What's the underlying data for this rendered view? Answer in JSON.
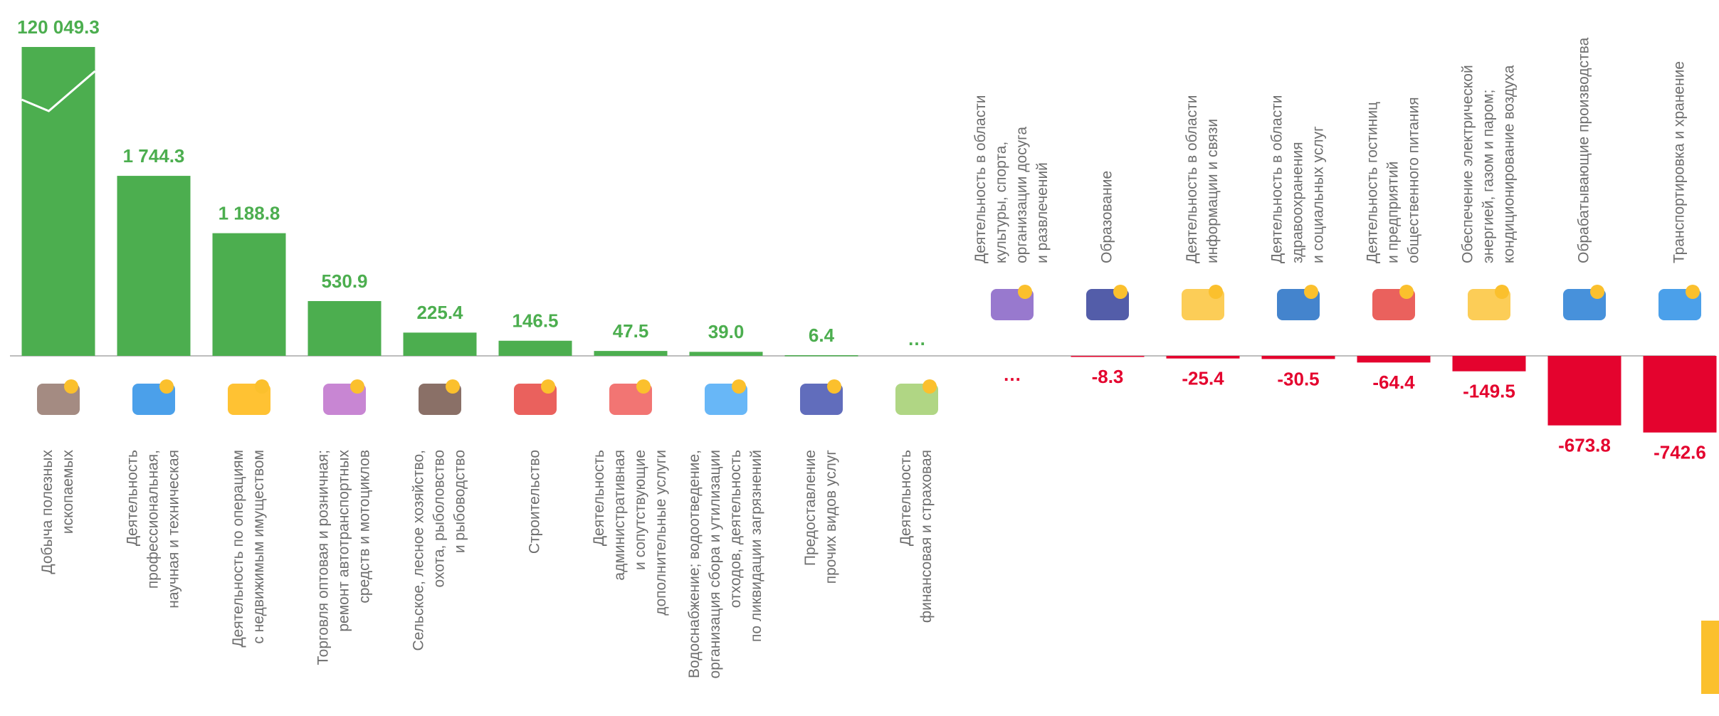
{
  "chart_data": {
    "type": "bar",
    "categories": [
      [
        "Добыча полезных",
        "ископаемых"
      ],
      [
        "Деятельность",
        "профессиональная,",
        "научная и техническая"
      ],
      [
        "Деятельность по операциям",
        "с недвижимым имуществом"
      ],
      [
        "Торговля оптовая и розничная;",
        "ремонт автотранспортных",
        "средств и мотоциклов"
      ],
      [
        "Сельское, лесное хозяйство,",
        "охота, рыболовство",
        "и рыбоводство"
      ],
      [
        "Строительство"
      ],
      [
        "Деятельность",
        "административная",
        "и сопутствующие",
        "дополнительные услуги"
      ],
      [
        "Водоснабжение; водоотведение,",
        "организация сбора и утилизации",
        "отходов, деятельность",
        "по ликвидации загрязнений"
      ],
      [
        "Предоставление",
        "прочих видов услуг"
      ],
      [
        "Деятельность",
        "финансовая и страховая"
      ],
      [
        "Деятельность в области",
        "культуры, спорта,",
        "организации досуга",
        "и развлечений"
      ],
      [
        "Образование"
      ],
      [
        "Деятельность в области",
        "информации и связи"
      ],
      [
        "Деятельность в области",
        "здравоохранения",
        "и социальных услуг"
      ],
      [
        "Деятельность гостиниц",
        "и предприятий",
        "общественного питания"
      ],
      [
        "Обеспечение электрической",
        "энергией, газом и паром;",
        "кондиционирование воздуха"
      ],
      [
        "Обрабатывающие производства"
      ],
      [
        "Транспортировка и хранение"
      ]
    ],
    "values": [
      120049.3,
      1744.3,
      1188.8,
      530.9,
      225.4,
      146.5,
      47.5,
      39.0,
      6.4,
      null,
      null,
      -8.3,
      -25.4,
      -30.5,
      -64.4,
      -149.5,
      -673.8,
      -742.6
    ],
    "value_labels": [
      "120 049.3",
      "1 744.3",
      "1 188.8",
      "530.9",
      "225.4",
      "146.5",
      "47.5",
      "39.0",
      "6.4",
      "…",
      "…",
      "-8.3",
      "-25.4",
      "-30.5",
      "-64.4",
      "-149.5",
      "-673.8",
      "-742.6"
    ],
    "colors": {
      "positive": "#4cae4f",
      "negative": "#e4032e"
    }
  }
}
